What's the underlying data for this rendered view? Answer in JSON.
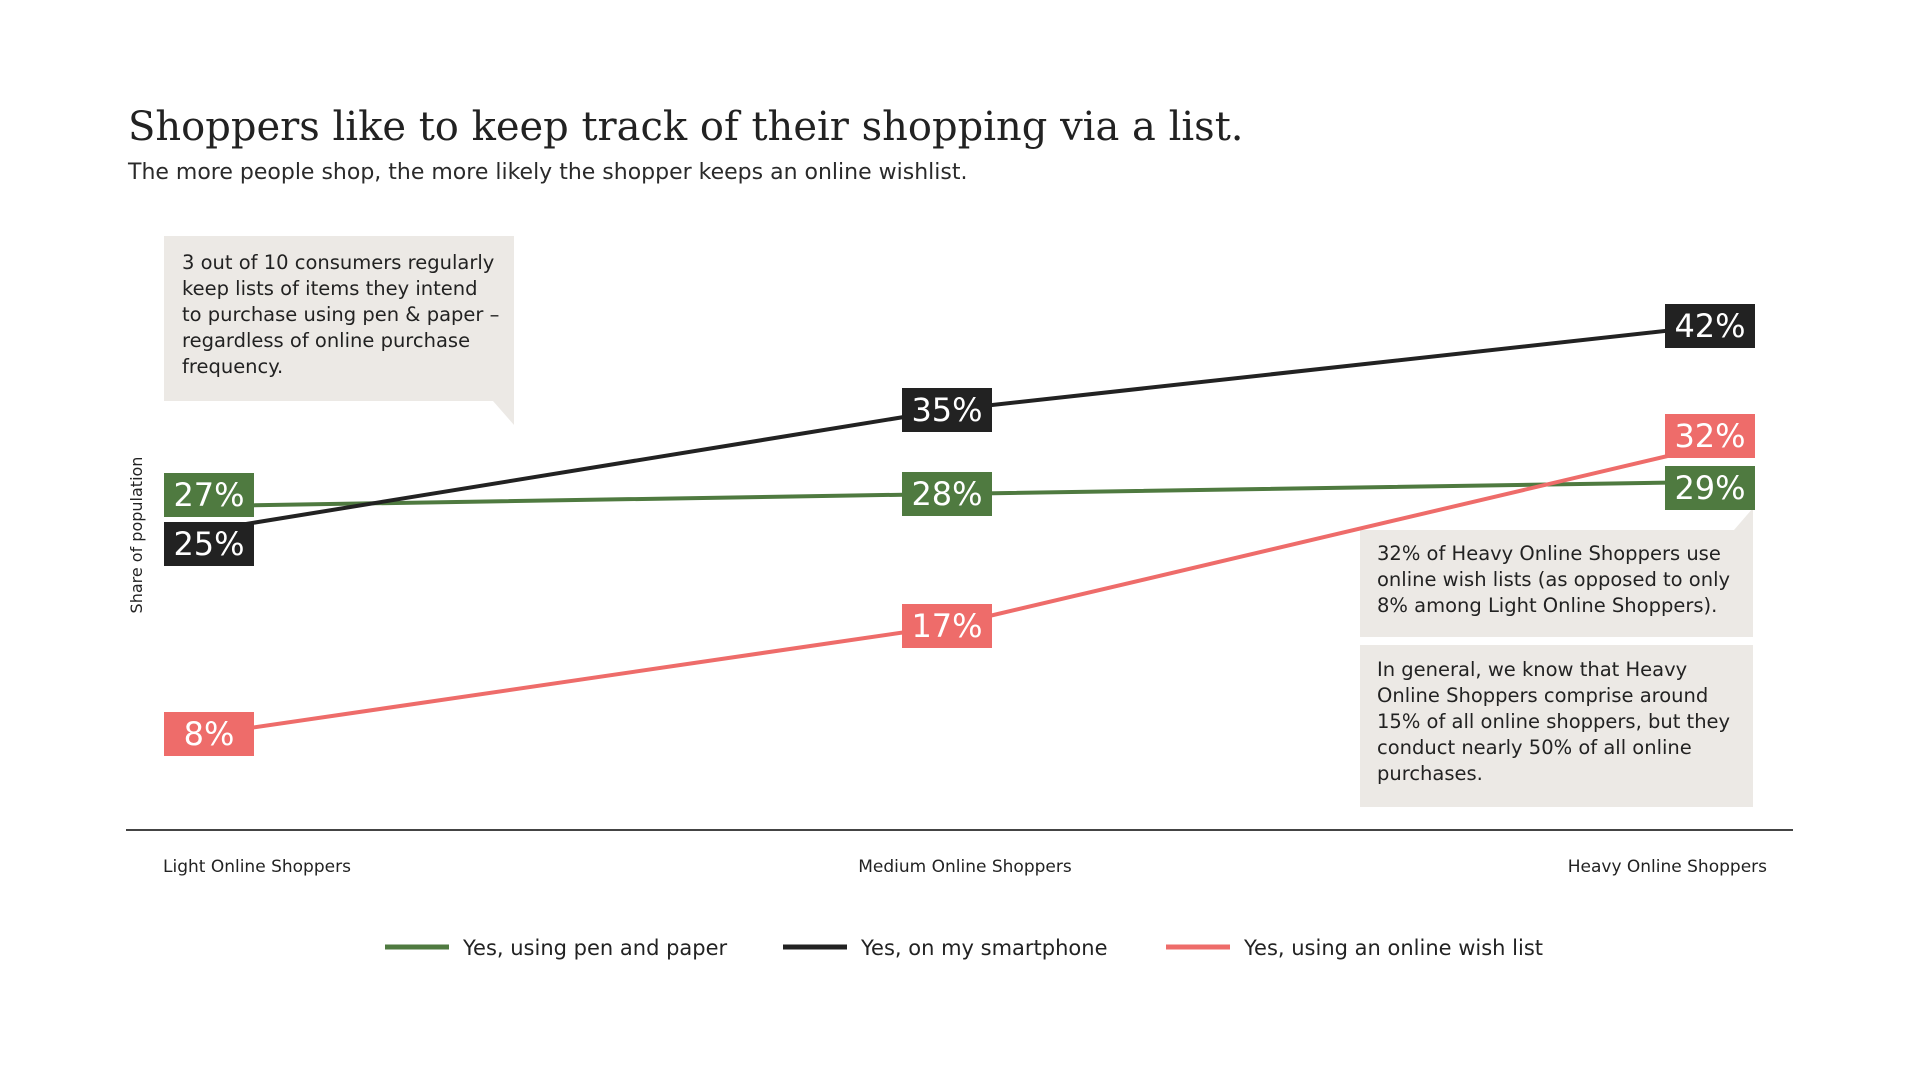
{
  "chart_data": {
    "type": "line",
    "title": "Shoppers like to keep track of their shopping via a list.",
    "subtitle": "The more people shop, the more likely the shopper keeps an online wishlist.",
    "ylabel": "Share of population",
    "xlabel": "",
    "categories": [
      "Light Online Shoppers",
      "Medium Online Shoppers",
      "Heavy Online Shoppers"
    ],
    "ylim": [
      0,
      50
    ],
    "grid": false,
    "legend_position": "bottom",
    "series": [
      {
        "name": "Yes, using pen and paper",
        "color": "#4f7a40",
        "values": [
          27,
          28,
          29
        ],
        "labels": [
          "27%",
          "28%",
          "29%"
        ]
      },
      {
        "name": "Yes, on my smartphone",
        "color": "#222222",
        "values": [
          25,
          35,
          42
        ],
        "labels": [
          "25%",
          "35%",
          "42%"
        ]
      },
      {
        "name": "Yes, using an online wish list",
        "color": "#ee6c6a",
        "values": [
          8,
          17,
          32
        ],
        "labels": [
          "8%",
          "17%",
          "32%"
        ]
      }
    ],
    "annotations": [
      "3 out of 10 consumers regularly keep lists of items they intend to purchase using pen & paper – regardless of online purchase frequency.",
      "32% of Heavy Online Shoppers use online wish lists (as opposed to only 8% among Light Online Shoppers).",
      "In general, we know that Heavy Online Shoppers comprise around 15% of all online shoppers, but they conduct nearly 50% of all online purchases."
    ]
  },
  "colors": {
    "annotation_bg": "#ece9e5",
    "axis": "#444444"
  }
}
